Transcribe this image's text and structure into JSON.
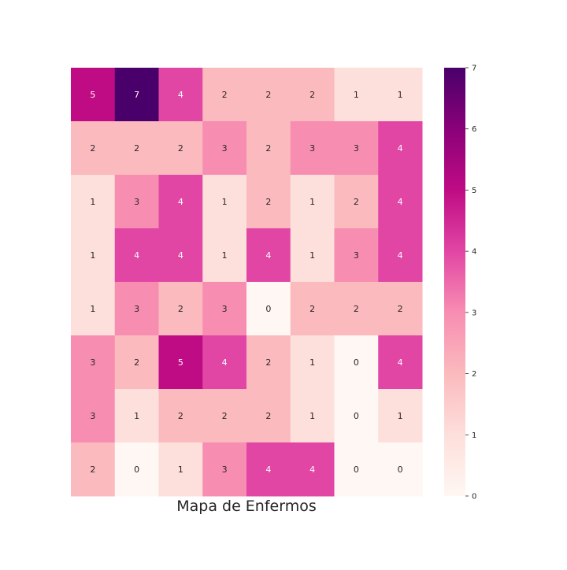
{
  "chart_data": {
    "type": "heatmap",
    "title": "",
    "xlabel": "Mapa de Enfermos",
    "ylabel": "",
    "rows": 8,
    "cols": 8,
    "values": [
      [
        5,
        7,
        4,
        2,
        2,
        2,
        1,
        1
      ],
      [
        2,
        2,
        2,
        3,
        2,
        3,
        3,
        4
      ],
      [
        1,
        3,
        4,
        1,
        2,
        1,
        2,
        4
      ],
      [
        1,
        4,
        4,
        1,
        4,
        1,
        3,
        4
      ],
      [
        1,
        3,
        2,
        3,
        0,
        2,
        2,
        2
      ],
      [
        3,
        2,
        5,
        4,
        2,
        1,
        0,
        4
      ],
      [
        3,
        1,
        2,
        2,
        2,
        1,
        0,
        1
      ],
      [
        2,
        0,
        1,
        3,
        4,
        4,
        0,
        0
      ]
    ],
    "colormap": "RdPu",
    "value_range": [
      0,
      7
    ],
    "colorbar_ticks": [
      "0",
      "1",
      "2",
      "3",
      "4",
      "5",
      "6",
      "7"
    ],
    "annotations": true,
    "grid": false,
    "colorbar_placement": "right",
    "colors": {
      "0": "#fff7f3",
      "1": "#fddfdb",
      "2": "#fbbabd",
      "3": "#f88db2",
      "4": "#e146a4",
      "5": "#bf0b84",
      "6": "#8a0179",
      "7": "#49006a"
    }
  }
}
